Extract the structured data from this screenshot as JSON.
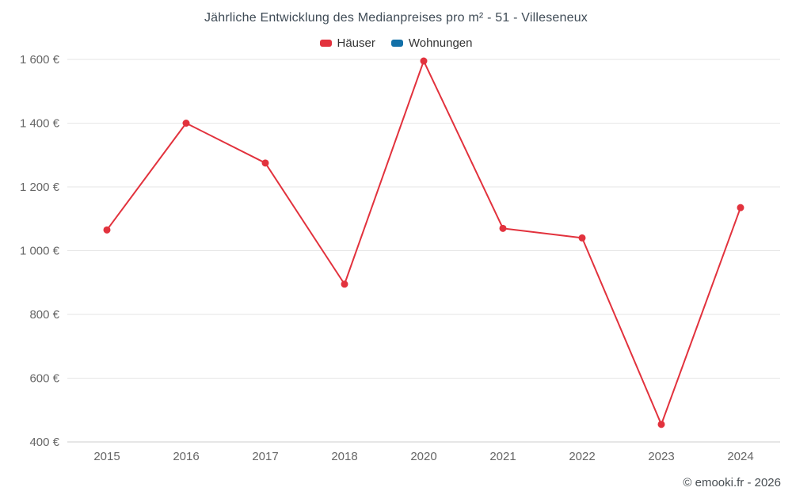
{
  "title": "Jährliche Entwicklung des Medianpreises pro m² - 51 - Villeseneux",
  "legend": [
    {
      "label": "Häuser",
      "color": "#e2323d"
    },
    {
      "label": "Wohnungen",
      "color": "#1270a8"
    }
  ],
  "footer": "© emooki.fr - 2026",
  "chart_data": {
    "type": "line",
    "title": "Jährliche Entwicklung des Medianpreises pro m² - 51 - Villeseneux",
    "categories": [
      "2015",
      "2016",
      "2017",
      "2018",
      "2020",
      "2021",
      "2022",
      "2023",
      "2024"
    ],
    "series": [
      {
        "name": "Häuser",
        "color": "#e2323d",
        "values": [
          1065,
          1400,
          1275,
          895,
          1595,
          1070,
          1040,
          455,
          1135
        ]
      },
      {
        "name": "Wohnungen",
        "color": "#1270a8",
        "values": []
      }
    ],
    "xlabel": "",
    "ylabel": "",
    "ylim": [
      400,
      1600
    ],
    "y_ticks": [
      400,
      600,
      800,
      1000,
      1200,
      1400,
      1600
    ],
    "y_tick_labels": [
      "400 €",
      "600 €",
      "800 €",
      "1 000 €",
      "1 200 €",
      "1 400 €",
      "1 600 €"
    ],
    "grid": true,
    "legend_position": "top"
  }
}
